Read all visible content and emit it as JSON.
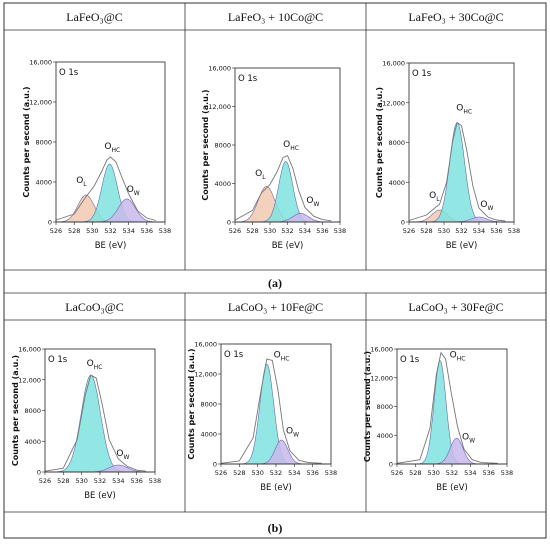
{
  "row_labels": [
    "(a)",
    "(b)"
  ],
  "panels": [
    {
      "title": "LaFeO₃@C",
      "label": "O 1s",
      "ymax": 16000,
      "yticks": [
        0,
        4000,
        8000,
        12000,
        16000
      ],
      "ytick_labels": [
        "0",
        "4000",
        "8000",
        "12,000",
        "16,000"
      ],
      "envelope": [
        [
          526,
          200
        ],
        [
          528,
          800
        ],
        [
          529.2,
          2400
        ],
        [
          530.2,
          3600
        ],
        [
          531,
          5000
        ],
        [
          531.6,
          6200
        ],
        [
          532,
          6500
        ],
        [
          532.6,
          6000
        ],
        [
          533.2,
          4600
        ],
        [
          534,
          2800
        ],
        [
          535,
          1100
        ],
        [
          536,
          400
        ],
        [
          537,
          150
        ]
      ],
      "components": [
        {
          "name": "O_L",
          "center": 529.3,
          "height": 2700,
          "sigma": 0.9,
          "fill": "#f2c9b0"
        },
        {
          "name": "O_HC",
          "center": 531.9,
          "height": 5800,
          "sigma": 0.85,
          "fill": "#7fe3e0"
        },
        {
          "name": "O_W",
          "center": 533.8,
          "height": 2300,
          "sigma": 0.95,
          "fill": "#c9b8ec"
        }
      ],
      "annotations": [
        {
          "sym": "O",
          "sub": "L",
          "x": 528.8,
          "y": 3900
        },
        {
          "sym": "O",
          "sub": "HC",
          "x": 532.2,
          "y": 7300
        },
        {
          "sym": "O",
          "sub": "W",
          "x": 534.5,
          "y": 3000
        }
      ]
    },
    {
      "title": "LaFeO₃ + 10Co@C",
      "label": "O 1s",
      "ymax": 16000,
      "yticks": [
        0,
        4000,
        8000,
        12000,
        16000
      ],
      "ytick_labels": [
        "0",
        "4000",
        "8000",
        "12,000",
        "16,000"
      ],
      "envelope": [
        [
          526,
          200
        ],
        [
          528,
          1200
        ],
        [
          529,
          3000
        ],
        [
          530,
          3900
        ],
        [
          530.8,
          5200
        ],
        [
          531.5,
          6700
        ],
        [
          532,
          6900
        ],
        [
          532.6,
          5600
        ],
        [
          533.3,
          3200
        ],
        [
          534,
          1500
        ],
        [
          535,
          600
        ],
        [
          536,
          250
        ],
        [
          537,
          120
        ]
      ],
      "components": [
        {
          "name": "O_L",
          "center": 529.6,
          "height": 3700,
          "sigma": 0.95,
          "fill": "#f2c9b0"
        },
        {
          "name": "O_HC",
          "center": 531.8,
          "height": 6300,
          "sigma": 0.8,
          "fill": "#7fe3e0"
        },
        {
          "name": "O_W",
          "center": 533.5,
          "height": 900,
          "sigma": 0.9,
          "fill": "#c9b8ec"
        }
      ],
      "annotations": [
        {
          "sym": "O",
          "sub": "L",
          "x": 528.9,
          "y": 4800
        },
        {
          "sym": "O",
          "sub": "HC",
          "x": 532.4,
          "y": 7800
        },
        {
          "sym": "O",
          "sub": "W",
          "x": 534.9,
          "y": 2000
        }
      ]
    },
    {
      "title": "LaFeO₃ + 30Co@C",
      "label": "O 1s",
      "ymax": 16000,
      "yticks": [
        0,
        4000,
        8000,
        12000,
        16000
      ],
      "ytick_labels": [
        "0",
        "4000",
        "8000",
        "12,000",
        "16,000"
      ],
      "envelope": [
        [
          526,
          150
        ],
        [
          528,
          700
        ],
        [
          529.5,
          1800
        ],
        [
          530.3,
          4000
        ],
        [
          531,
          8200
        ],
        [
          531.5,
          10000
        ],
        [
          532,
          9700
        ],
        [
          532.6,
          7200
        ],
        [
          533.3,
          3600
        ],
        [
          534,
          1400
        ],
        [
          535,
          500
        ],
        [
          536,
          200
        ],
        [
          537,
          100
        ]
      ],
      "components": [
        {
          "name": "O_L",
          "center": 529.5,
          "height": 1200,
          "sigma": 0.9,
          "fill": "#f2c9b0"
        },
        {
          "name": "O_HC",
          "center": 531.5,
          "height": 10000,
          "sigma": 0.85,
          "fill": "#7fe3e0"
        },
        {
          "name": "O_W",
          "center": 534.0,
          "height": 500,
          "sigma": 0.9,
          "fill": "#c9b8ec"
        }
      ],
      "annotations": [
        {
          "sym": "O",
          "sub": "L",
          "x": 528.9,
          "y": 2400
        },
        {
          "sym": "O",
          "sub": "HC",
          "x": 532.3,
          "y": 11200
        },
        {
          "sym": "O",
          "sub": "W",
          "x": 534.9,
          "y": 1500
        }
      ]
    },
    {
      "title": "LaCoO₃@C",
      "label": "O 1s",
      "ymax": 16000,
      "yticks": [
        0,
        4000,
        8000,
        12000,
        16000
      ],
      "ytick_labels": [
        "0",
        "4000",
        "8000",
        "12,000",
        "16,000"
      ],
      "envelope": [
        [
          526,
          100
        ],
        [
          528,
          500
        ],
        [
          529.5,
          4200
        ],
        [
          530.4,
          10000
        ],
        [
          531,
          12600
        ],
        [
          531.6,
          12200
        ],
        [
          532.3,
          8500
        ],
        [
          533,
          4200
        ],
        [
          534,
          1700
        ],
        [
          535,
          700
        ],
        [
          536,
          250
        ],
        [
          537,
          100
        ]
      ],
      "components": [
        {
          "name": "O_HC",
          "center": 531.0,
          "height": 12600,
          "sigma": 1.05,
          "fill": "#7fe3e0"
        },
        {
          "name": "O_W",
          "center": 534.0,
          "height": 900,
          "sigma": 1.0,
          "fill": "#c9b8ec"
        }
      ],
      "annotations": [
        {
          "sym": "O",
          "sub": "HC",
          "x": 531.4,
          "y": 13800
        },
        {
          "sym": "O",
          "sub": "W",
          "x": 534.5,
          "y": 2100
        }
      ]
    },
    {
      "title": "LaCoO₃ + 10Fe@C",
      "label": "O 1s",
      "ymax": 16000,
      "yticks": [
        0,
        4000,
        8000,
        12000,
        16000
      ],
      "ytick_labels": [
        "0",
        "4000",
        "8000",
        "12,000",
        "16,000"
      ],
      "envelope": [
        [
          526,
          100
        ],
        [
          528,
          400
        ],
        [
          529.5,
          3500
        ],
        [
          530.4,
          10000
        ],
        [
          531,
          14000
        ],
        [
          531.6,
          13800
        ],
        [
          532.2,
          10000
        ],
        [
          532.8,
          4600
        ],
        [
          533.5,
          1800
        ],
        [
          534.5,
          500
        ],
        [
          535.5,
          200
        ],
        [
          537,
          100
        ]
      ],
      "components": [
        {
          "name": "O_HC",
          "center": 531.0,
          "height": 13300,
          "sigma": 0.75,
          "fill": "#7fe3e0"
        },
        {
          "name": "O_W",
          "center": 532.6,
          "height": 3200,
          "sigma": 0.7,
          "fill": "#c9b8ec"
        }
      ],
      "annotations": [
        {
          "sym": "O",
          "sub": "HC",
          "x": 532.6,
          "y": 14200
        },
        {
          "sym": "O",
          "sub": "W",
          "x": 533.8,
          "y": 4100
        }
      ]
    },
    {
      "title": "LaCoO₃ + 30Fe@C",
      "label": "O 1s",
      "ymax": 16000,
      "yticks": [
        0,
        4000,
        8000,
        12000,
        16000
      ],
      "ytick_labels": [
        "0",
        "4000",
        "8000",
        "12,000",
        "16,000"
      ],
      "envelope": [
        [
          526,
          100
        ],
        [
          528.5,
          600
        ],
        [
          529.6,
          5000
        ],
        [
          530.3,
          12500
        ],
        [
          530.8,
          15500
        ],
        [
          531.3,
          14600
        ],
        [
          531.9,
          10000
        ],
        [
          532.6,
          5200
        ],
        [
          533.3,
          2100
        ],
        [
          534.2,
          600
        ],
        [
          535.2,
          200
        ],
        [
          537,
          100
        ]
      ],
      "components": [
        {
          "name": "O_HC",
          "center": 530.7,
          "height": 14400,
          "sigma": 0.65,
          "fill": "#7fe3e0"
        },
        {
          "name": "O_W",
          "center": 532.5,
          "height": 3600,
          "sigma": 0.7,
          "fill": "#c9b8ec"
        }
      ],
      "annotations": [
        {
          "sym": "O",
          "sub": "HC",
          "x": 532.6,
          "y": 14800
        },
        {
          "sym": "O",
          "sub": "W",
          "x": 533.8,
          "y": 3400
        }
      ]
    }
  ],
  "axis": {
    "xlabel": "BE (eV)",
    "ylabel": "Counts per second (a.u.)",
    "xmin": 526,
    "xmax": 538,
    "xticks": [
      526,
      528,
      530,
      532,
      534,
      536,
      538
    ]
  },
  "chart_data": [
    {
      "type": "area",
      "title": "LaFeO₃@C",
      "xlabel": "BE (eV)",
      "ylabel": "Counts per second (a.u.)",
      "xlim": [
        526,
        538
      ],
      "ylim": [
        0,
        16000
      ],
      "series": [
        {
          "name": "O_L",
          "peak_x": 529.3,
          "peak_y": 2700
        },
        {
          "name": "O_HC",
          "peak_x": 531.9,
          "peak_y": 5800
        },
        {
          "name": "O_W",
          "peak_x": 533.8,
          "peak_y": 2300
        }
      ]
    },
    {
      "type": "area",
      "title": "LaFeO₃ + 10Co@C",
      "xlabel": "BE (eV)",
      "ylabel": "Counts per second (a.u.)",
      "xlim": [
        526,
        538
      ],
      "ylim": [
        0,
        16000
      ],
      "series": [
        {
          "name": "O_L",
          "peak_x": 529.6,
          "peak_y": 3700
        },
        {
          "name": "O_HC",
          "peak_x": 531.8,
          "peak_y": 6300
        },
        {
          "name": "O_W",
          "peak_x": 533.5,
          "peak_y": 900
        }
      ]
    },
    {
      "type": "area",
      "title": "LaFeO₃ + 30Co@C",
      "xlabel": "BE (eV)",
      "ylabel": "Counts per second (a.u.)",
      "xlim": [
        526,
        538
      ],
      "ylim": [
        0,
        16000
      ],
      "series": [
        {
          "name": "O_L",
          "peak_x": 529.5,
          "peak_y": 1200
        },
        {
          "name": "O_HC",
          "peak_x": 531.5,
          "peak_y": 10000
        },
        {
          "name": "O_W",
          "peak_x": 534.0,
          "peak_y": 500
        }
      ]
    },
    {
      "type": "area",
      "title": "LaCoO₃@C",
      "xlabel": "BE (eV)",
      "ylabel": "Counts per second (a.u.)",
      "xlim": [
        526,
        538
      ],
      "ylim": [
        0,
        16000
      ],
      "series": [
        {
          "name": "O_HC",
          "peak_x": 531.0,
          "peak_y": 12600
        },
        {
          "name": "O_W",
          "peak_x": 534.0,
          "peak_y": 900
        }
      ]
    },
    {
      "type": "area",
      "title": "LaCoO₃ + 10Fe@C",
      "xlabel": "BE (eV)",
      "ylabel": "Counts per second (a.u.)",
      "xlim": [
        526,
        538
      ],
      "ylim": [
        0,
        16000
      ],
      "series": [
        {
          "name": "O_HC",
          "peak_x": 531.0,
          "peak_y": 13300
        },
        {
          "name": "O_W",
          "peak_x": 532.6,
          "peak_y": 3200
        }
      ]
    },
    {
      "type": "area",
      "title": "LaCoO₃ + 30Fe@C",
      "xlabel": "BE (eV)",
      "ylabel": "Counts per second (a.u.)",
      "xlim": [
        526,
        538
      ],
      "ylim": [
        0,
        16000
      ],
      "series": [
        {
          "name": "O_HC",
          "peak_x": 530.7,
          "peak_y": 14400
        },
        {
          "name": "O_W",
          "peak_x": 532.5,
          "peak_y": 3600
        }
      ]
    }
  ]
}
